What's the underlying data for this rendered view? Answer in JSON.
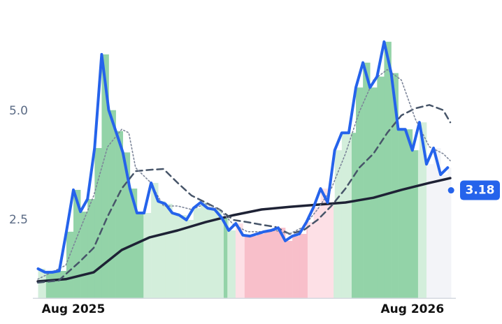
{
  "chart_data": {
    "type": "line",
    "xlim": [
      -1.3,
      13.4
    ],
    "ylim": [
      0.7,
      7.5
    ],
    "xticks": [
      {
        "value": 0,
        "label": "Aug 2025"
      },
      {
        "value": 12,
        "label": "Aug 2026"
      }
    ],
    "yticks": [
      2.5,
      {
        "value": 5,
        "label": "5.0"
      }
    ],
    "grid": false,
    "zones": [
      {
        "from": -1.26,
        "to": -0.97,
        "color": "#d3eedb"
      },
      {
        "from": -0.97,
        "to": 2.48,
        "color": "#93d3a8"
      },
      {
        "from": 2.48,
        "to": 5.32,
        "color": "#d3eedb"
      },
      {
        "from": 5.32,
        "to": 5.45,
        "color": "#93d3a8"
      },
      {
        "from": 5.45,
        "to": 5.74,
        "color": "#d3eedb"
      },
      {
        "from": 5.74,
        "to": 6.06,
        "color": "#fde0e6"
      },
      {
        "from": 6.06,
        "to": 8.29,
        "color": "#f8bfca"
      },
      {
        "from": 8.29,
        "to": 9.21,
        "color": "#fde0e6"
      },
      {
        "from": 9.21,
        "to": 9.85,
        "color": "#d3eedb"
      },
      {
        "from": 9.85,
        "to": 12.2,
        "color": "#93d3a8"
      },
      {
        "from": 12.2,
        "to": 12.5,
        "color": "#d3eedb"
      },
      {
        "from": 12.5,
        "to": 13.37,
        "color": "#f3f4f8"
      }
    ],
    "series": [
      {
        "color": "#2563eb",
        "style": "solid",
        "width": 4,
        "x": [
          -1.25,
          -1,
          -0.75,
          -0.5,
          -0.25,
          0,
          0.25,
          0.5,
          0.75,
          1,
          1.25,
          1.5,
          1.75,
          2,
          2.25,
          2.5,
          2.75,
          3,
          3.25,
          3.5,
          3.75,
          4,
          4.25,
          4.5,
          4.75,
          5,
          5.25,
          5.5,
          5.75,
          6,
          6.25,
          6.5,
          6.75,
          7,
          7.25,
          7.5,
          7.75,
          8,
          8.25,
          8.5,
          8.75,
          9,
          9.25,
          9.5,
          9.75,
          10,
          10.25,
          10.5,
          10.75,
          11,
          11.25,
          11.5,
          11.75,
          12,
          12.25,
          12.5,
          12.75,
          13,
          13.25
        ],
        "values": [
          1.38,
          1.3,
          1.3,
          1.33,
          2.23,
          3.19,
          2.69,
          2.98,
          4.15,
          6.3,
          5.02,
          4.54,
          4.05,
          3.22,
          2.66,
          2.66,
          3.35,
          2.93,
          2.87,
          2.66,
          2.61,
          2.5,
          2.77,
          2.9,
          2.77,
          2.74,
          2.55,
          2.26,
          2.42,
          2.15,
          2.13,
          2.18,
          2.23,
          2.26,
          2.32,
          2.02,
          2.13,
          2.18,
          2.45,
          2.79,
          3.22,
          2.9,
          4.1,
          4.5,
          4.5,
          5.54,
          6.11,
          5.54,
          5.79,
          6.59,
          5.87,
          4.58,
          4.58,
          4.1,
          4.74,
          3.78,
          4.15,
          3.54,
          3.7
        ]
      },
      {
        "color": "#1e2235",
        "style": "solid",
        "width": 3.5,
        "x": [
          -1.26,
          -0.27,
          0.72,
          1.71,
          2.7,
          3.69,
          4.68,
          5.67,
          6.66,
          7.65,
          8.64,
          9.63,
          10.62,
          11.61,
          12.6,
          13.34
        ],
        "values": [
          1.09,
          1.14,
          1.3,
          1.81,
          2.1,
          2.26,
          2.45,
          2.61,
          2.74,
          2.8,
          2.85,
          2.9,
          3.01,
          3.19,
          3.35,
          3.46
        ]
      },
      {
        "color": "#475569",
        "style": "dashed",
        "width": 2.5,
        "x": [
          -1.26,
          -0.52,
          0.22,
          0.72,
          1.21,
          1.71,
          2.2,
          2.7,
          3.19,
          3.69,
          4.18,
          4.68,
          5.17,
          5.67,
          6.16,
          6.66,
          7.15,
          7.65,
          8.14,
          8.64,
          9.13,
          9.63,
          10.12,
          10.62,
          11.11,
          11.61,
          12.1,
          12.6,
          13.09,
          13.34
        ],
        "values": [
          1.06,
          1.11,
          1.54,
          1.86,
          2.58,
          3.22,
          3.62,
          3.65,
          3.67,
          3.35,
          3.06,
          2.9,
          2.74,
          2.5,
          2.45,
          2.39,
          2.34,
          2.18,
          2.26,
          2.5,
          2.82,
          3.22,
          3.7,
          4.02,
          4.5,
          4.9,
          5.06,
          5.14,
          5.02,
          4.74
        ]
      },
      {
        "color": "#7c8599",
        "style": "dotted",
        "width": 1.6,
        "x": [
          -1.26,
          -0.27,
          0.22,
          0.72,
          1.21,
          1.71,
          1.96,
          2.2,
          2.7,
          3.19,
          3.69,
          4.18,
          4.68,
          5.17,
          5.67,
          6.16,
          6.66,
          7.15,
          7.65,
          8.14,
          8.64,
          9.13,
          9.63,
          10.12,
          10.62,
          11.11,
          11.61,
          12.1,
          12.6,
          13.09,
          13.34
        ],
        "values": [
          1.14,
          1.46,
          2.26,
          3.06,
          4.18,
          4.58,
          4.5,
          3.7,
          3.38,
          2.82,
          2.82,
          2.74,
          2.87,
          2.74,
          2.39,
          2.23,
          2.23,
          2.26,
          2.18,
          2.34,
          2.74,
          3.22,
          4.02,
          4.98,
          5.71,
          5.95,
          5.71,
          4.82,
          4.18,
          4.02,
          3.86
        ]
      }
    ],
    "last": {
      "x": 13.37,
      "value": 3.18,
      "color": "#2563eb"
    }
  }
}
